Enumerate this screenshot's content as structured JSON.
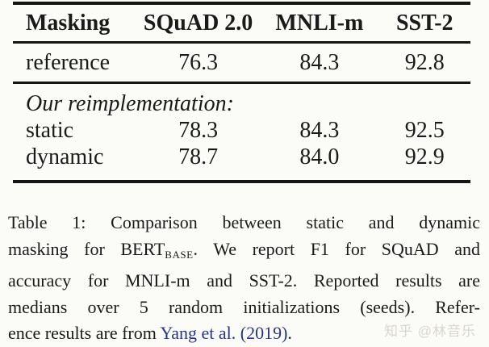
{
  "table": {
    "columns": [
      "Masking",
      "SQuAD 2.0",
      "MNLI-m",
      "SST-2"
    ],
    "reference_row": {
      "label": "reference",
      "values": [
        "76.3",
        "84.3",
        "92.8"
      ]
    },
    "section_label": "Our reimplementation:",
    "rows": [
      {
        "label": "static",
        "values": [
          "78.3",
          "84.3",
          "92.5"
        ]
      },
      {
        "label": "dynamic",
        "values": [
          "78.7",
          "84.0",
          "92.9"
        ]
      }
    ]
  },
  "caption": {
    "line1": "Table 1:  Comparison between static and dynamic",
    "line2_pre": "masking for BERT",
    "line2_sub": "BASE",
    "line2_post": ". We report F1 for SQuAD and",
    "line3": "accuracy for MNLI-m and SST-2. Reported results are",
    "line4": "medians over 5 random initializations (seeds).  Refer-",
    "line5_pre": "ence results are from ",
    "line5_citation": "Yang et al. (2019)",
    "line5_post": "."
  },
  "watermark": "知乎 @林音乐",
  "colors": {
    "background": "#fbfbf8",
    "text": "#1a1a1a",
    "rule": "#151515",
    "citation": "#2a3585",
    "watermark": "#dad7d1"
  }
}
